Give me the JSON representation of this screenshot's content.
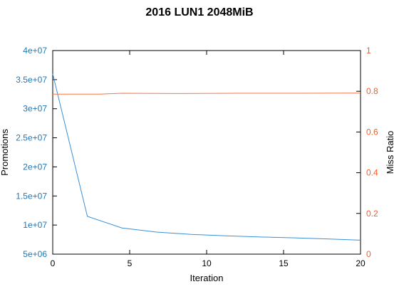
{
  "chart_data": {
    "type": "line",
    "title": "2016 LUN1 2048MiB",
    "xlabel": "Iteration",
    "ylabel_left": "Promotions",
    "ylabel_right": "Miss Ratio",
    "xlim": [
      0,
      20
    ],
    "ylim_left": [
      5000000,
      40000000
    ],
    "ylim_right": [
      0,
      1
    ],
    "x_ticks": [
      0,
      5,
      10,
      15,
      20
    ],
    "x_tick_labels": [
      "0",
      "5",
      "10",
      "15",
      "20"
    ],
    "y_left_ticks": [
      5000000,
      10000000,
      15000000,
      20000000,
      25000000,
      30000000,
      35000000,
      40000000
    ],
    "y_left_tick_labels": [
      "5e+06",
      "1e+07",
      "1.5e+07",
      "2e+07",
      "2.5e+07",
      "3e+07",
      "3.5e+07",
      "4e+07"
    ],
    "y_right_ticks": [
      0,
      0.2,
      0.4,
      0.6,
      0.8,
      1
    ],
    "y_right_tick_labels": [
      "0",
      "0.2",
      "0.4",
      "0.6",
      "0.8",
      "1"
    ],
    "grid": false,
    "colors": {
      "left_axis": "#1f77b4",
      "right_axis": "#ff5a1f"
    },
    "series": [
      {
        "axis": "left",
        "color": "#3a8fd6",
        "x": [
          0,
          2.25,
          4.5,
          6.75,
          9,
          11.25,
          13.5,
          15.75,
          18,
          20
        ],
        "values": [
          36000000,
          11500000,
          9500000,
          8800000,
          8400000,
          8150000,
          7950000,
          7800000,
          7600000,
          7400000
        ]
      },
      {
        "axis": "right",
        "color": "#f4784b",
        "x": [
          0,
          3,
          4.5,
          8,
          12,
          16,
          20
        ],
        "values": [
          0.786,
          0.786,
          0.79,
          0.789,
          0.79,
          0.79,
          0.791
        ]
      }
    ]
  }
}
